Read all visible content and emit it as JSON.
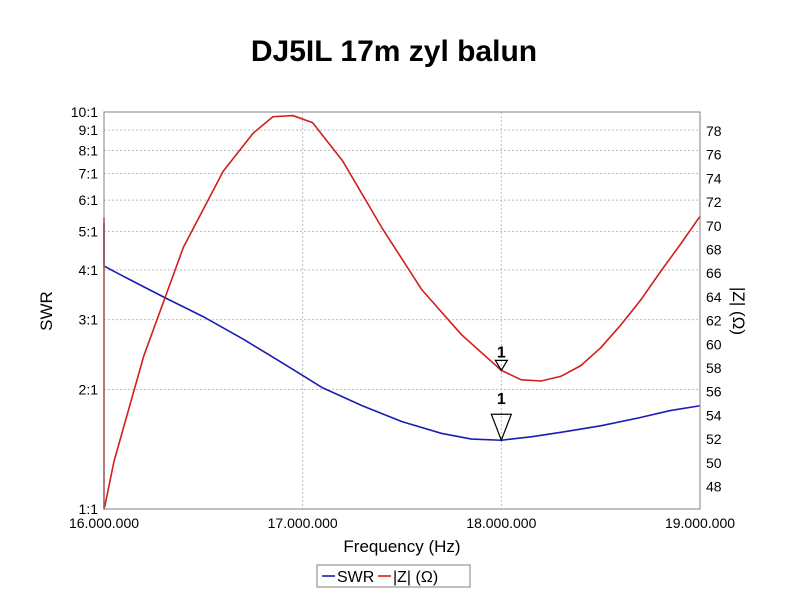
{
  "chart_data": {
    "type": "line",
    "title": "DJ5IL 17m zyl balun",
    "xlabel": "Frequency (Hz)",
    "ylabel_left": "SWR",
    "ylabel_right": "|Z| (Ω)",
    "xlim": [
      16000000,
      19000000
    ],
    "x_ticks": [
      {
        "value": 16000000,
        "label": "16.000.000"
      },
      {
        "value": 17000000,
        "label": "17.000.000"
      },
      {
        "value": 18000000,
        "label": "18.000.000"
      },
      {
        "value": 19000000,
        "label": "19.000.000"
      }
    ],
    "y_left": {
      "scale": "log",
      "lim": [
        1,
        10
      ],
      "ticks": [
        {
          "value": 1,
          "label": "1:1"
        },
        {
          "value": 2,
          "label": "2:1"
        },
        {
          "value": 3,
          "label": "3:1"
        },
        {
          "value": 4,
          "label": "4:1"
        },
        {
          "value": 5,
          "label": "5:1"
        },
        {
          "value": 6,
          "label": "6:1"
        },
        {
          "value": 7,
          "label": "7:1"
        },
        {
          "value": 8,
          "label": "8:1"
        },
        {
          "value": 9,
          "label": "9:1"
        },
        {
          "value": 10,
          "label": "10:1"
        }
      ]
    },
    "y_right": {
      "scale": "linear",
      "lim": [
        46.1,
        79.6
      ],
      "ticks": [
        {
          "value": 48,
          "label": "48"
        },
        {
          "value": 50,
          "label": "50"
        },
        {
          "value": 52,
          "label": "52"
        },
        {
          "value": 54,
          "label": "54"
        },
        {
          "value": 56,
          "label": "56"
        },
        {
          "value": 58,
          "label": "58"
        },
        {
          "value": 60,
          "label": "60"
        },
        {
          "value": 62,
          "label": "62"
        },
        {
          "value": 64,
          "label": "64"
        },
        {
          "value": 66,
          "label": "66"
        },
        {
          "value": 68,
          "label": "68"
        },
        {
          "value": 70,
          "label": "70"
        },
        {
          "value": 72,
          "label": "72"
        },
        {
          "value": 74,
          "label": "74"
        },
        {
          "value": 76,
          "label": "76"
        },
        {
          "value": 78,
          "label": "78"
        }
      ]
    },
    "grid": true,
    "legend_position": "bottom-center",
    "series": [
      {
        "name": "SWR",
        "axis": "left",
        "color": "#1c1cb4",
        "x": [
          16000000,
          16000000,
          16005000,
          16100000,
          16300000,
          16500000,
          16700000,
          16900000,
          17100000,
          17300000,
          17500000,
          17700000,
          17850000,
          18000000,
          18150000,
          18300000,
          18500000,
          18700000,
          18850000,
          19000000
        ],
        "y": [
          5.25,
          4.1,
          4.08,
          3.85,
          3.42,
          3.05,
          2.68,
          2.33,
          2.02,
          1.82,
          1.66,
          1.55,
          1.5,
          1.49,
          1.52,
          1.56,
          1.62,
          1.7,
          1.77,
          1.82
        ]
      },
      {
        "name": "|Z| (Ω)",
        "axis": "right",
        "color": "#d21e1e",
        "x": [
          16000000,
          16000000,
          16005000,
          16050000,
          16200000,
          16400000,
          16600000,
          16750000,
          16850000,
          16950000,
          17050000,
          17200000,
          17400000,
          17600000,
          17800000,
          18000000,
          18100000,
          18200000,
          18300000,
          18400000,
          18500000,
          18600000,
          18700000,
          18800000,
          18900000,
          19000000
        ],
        "y": [
          70.7,
          46.1,
          46.4,
          50.1,
          59.0,
          68.2,
          74.6,
          77.8,
          79.2,
          79.3,
          78.7,
          75.5,
          69.8,
          64.6,
          60.8,
          57.8,
          57.0,
          56.9,
          57.3,
          58.2,
          59.7,
          61.6,
          63.7,
          66.1,
          68.4,
          70.8
        ]
      }
    ],
    "markers": [
      {
        "label": "1",
        "series": "|Z| (Ω)",
        "x": 18000000,
        "y": 57.8,
        "size": "small"
      },
      {
        "label": "1",
        "series": "SWR",
        "x": 18000000,
        "y": 1.49,
        "size": "large"
      }
    ]
  }
}
